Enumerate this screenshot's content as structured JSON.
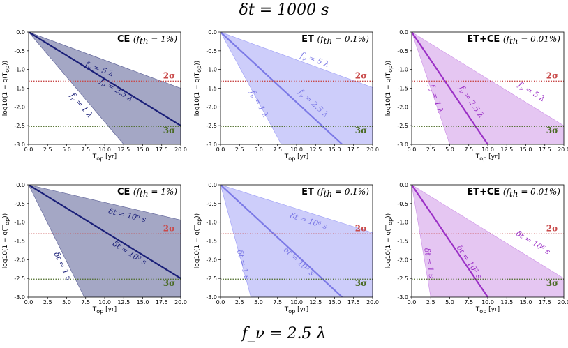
{
  "figure": {
    "title_top": "δt = 1000 s",
    "title_bottom": "f_ν = 2.5 λ",
    "colors": {
      "CE": {
        "fill": "#5a5e95",
        "line": "#1a1f78",
        "label": "#1a1f78"
      },
      "ET": {
        "fill": "#9b9cf6",
        "line": "#7b79e6",
        "label": "#7b79e6"
      },
      "ETCE": {
        "fill": "#cc8ee6",
        "line": "#9b30c6",
        "label": "#9b30c6"
      },
      "sigma2": "#c94a4a",
      "sigma3": "#4a6a24"
    }
  },
  "chart_data": [
    {
      "id": "p11",
      "type": "area",
      "title_bold": "CE",
      "title_math": "(f_th = 1%)",
      "xlabel": "T_op [yr]",
      "ylabel": "log10(1 − q(T_op))",
      "xlim": [
        0,
        20
      ],
      "ylim": [
        -3,
        0
      ],
      "xticks": [
        "0.0",
        "2.5",
        "5.0",
        "7.5",
        "10.0",
        "12.5",
        "15.0",
        "17.5",
        "20.0"
      ],
      "yticks": [
        "0.0",
        "-0.5",
        "-1.0",
        "-1.5",
        "-2.0",
        "-2.5",
        "-3.0"
      ],
      "slopes": {
        "upper": -0.075,
        "center": -0.125,
        "lower": -0.24
      },
      "hlines": [
        {
          "label": "2σ",
          "y": -1.31,
          "kind": "sigma2"
        },
        {
          "label": "3σ",
          "y": -2.52,
          "kind": "sigma3"
        }
      ],
      "labels": [
        {
          "text": "f_ν = 5 λ",
          "x": 9.2,
          "y": -1.05
        },
        {
          "text": "f_ν = 2.5 λ",
          "x": 11.4,
          "y": -1.6
        },
        {
          "text": "f_ν = 1 λ",
          "x": 6.7,
          "y": -2.0
        }
      ],
      "color": "CE"
    },
    {
      "id": "p12",
      "type": "area",
      "title_bold": "ET",
      "title_math": "(f_th = 0.1%)",
      "xlabel": "T_op [yr]",
      "ylabel": "log10(1 − q(T_op))",
      "xlim": [
        0,
        20
      ],
      "ylim": [
        -3,
        0
      ],
      "xticks": [
        "0.0",
        "2.5",
        "5.0",
        "7.5",
        "10.0",
        "12.5",
        "15.0",
        "17.5",
        "20.0"
      ],
      "yticks": [
        "0.0",
        "-0.5",
        "-1.0",
        "-1.5",
        "-2.0",
        "-2.5",
        "-3.0"
      ],
      "slopes": {
        "upper": -0.074,
        "center": -0.1875,
        "lower": -0.375
      },
      "hlines": [
        {
          "label": "2σ",
          "y": -1.31,
          "kind": "sigma2"
        },
        {
          "label": "3σ",
          "y": -2.52,
          "kind": "sigma3"
        }
      ],
      "labels": [
        {
          "text": "f_ν = 5 λ",
          "x": 12.3,
          "y": -0.8
        },
        {
          "text": "f_ν = 2.5 λ",
          "x": 12.0,
          "y": -1.95
        },
        {
          "text": "f_ν = 1 λ",
          "x": 4.8,
          "y": -1.95
        }
      ],
      "color": "ET"
    },
    {
      "id": "p13",
      "type": "area",
      "title_bold": "ET+CE",
      "title_math": "(f_th = 0.01%)",
      "xlabel": "T_op [yr]",
      "ylabel": "log10(1 − q(T_op))",
      "xlim": [
        0,
        20
      ],
      "ylim": [
        -3,
        0
      ],
      "xticks": [
        "0.0",
        "2.5",
        "5.0",
        "7.5",
        "10.0",
        "12.5",
        "15.0",
        "17.5",
        "20.0"
      ],
      "yticks": [
        "0.0",
        "-0.5",
        "-1.0",
        "-1.5",
        "-2.0",
        "-2.5",
        "-3.0"
      ],
      "slopes": {
        "upper": -0.125,
        "center": -0.3,
        "lower": -0.6
      },
      "hlines": [
        {
          "label": "2σ",
          "y": -1.31,
          "kind": "sigma2"
        },
        {
          "label": "3σ",
          "y": -2.52,
          "kind": "sigma3"
        }
      ],
      "labels": [
        {
          "text": "f_ν = 5 λ",
          "x": 15.6,
          "y": -1.65
        },
        {
          "text": "f_ν = 2.5 λ",
          "x": 7.6,
          "y": -1.9
        },
        {
          "text": "f_ν = 1 λ",
          "x": 2.9,
          "y": -1.8
        }
      ],
      "color": "ETCE"
    },
    {
      "id": "p21",
      "type": "area",
      "title_bold": "CE",
      "title_math": "(f_th = 1%)",
      "xlabel": "T_op [yr]",
      "ylabel": "log10(1 − q(T_op))",
      "xlim": [
        0,
        20
      ],
      "ylim": [
        -3,
        0
      ],
      "xticks": [
        "0.0",
        "2.5",
        "5.0",
        "7.5",
        "10.0",
        "12.5",
        "15.0",
        "17.5",
        "20.0"
      ],
      "yticks": [
        "0.0",
        "-0.5",
        "-1.0",
        "-1.5",
        "-2.0",
        "-2.5",
        "-3.0"
      ],
      "slopes": {
        "upper": -0.047,
        "center": -0.125,
        "lower": -0.41
      },
      "hlines": [
        {
          "label": "2σ",
          "y": -1.31,
          "kind": "sigma2"
        },
        {
          "label": "3σ",
          "y": -2.52,
          "kind": "sigma3"
        }
      ],
      "labels": [
        {
          "text": "δt = 10⁶ s",
          "x": 12.9,
          "y": -0.88
        },
        {
          "text": "δt = 10³ s",
          "x": 13.1,
          "y": -1.88
        },
        {
          "text": "δt = 1 s",
          "x": 4.2,
          "y": -2.2
        }
      ],
      "color": "CE"
    },
    {
      "id": "p22",
      "type": "area",
      "title_bold": "ET",
      "title_math": "(f_th = 0.1%)",
      "xlabel": "T_op [yr]",
      "ylabel": "log10(1 − q(T_op))",
      "xlim": [
        0,
        20
      ],
      "ylim": [
        -3,
        0
      ],
      "xticks": [
        "0.0",
        "2.5",
        "5.0",
        "7.5",
        "10.0",
        "12.5",
        "15.0",
        "17.5",
        "20.0"
      ],
      "yticks": [
        "0.0",
        "-0.5",
        "-1.0",
        "-1.5",
        "-2.0",
        "-2.5",
        "-3.0"
      ],
      "slopes": {
        "upper": -0.064,
        "center": -0.1875,
        "lower": -0.75
      },
      "hlines": [
        {
          "label": "2σ",
          "y": -1.31,
          "kind": "sigma2"
        },
        {
          "label": "3σ",
          "y": -2.52,
          "kind": "sigma3"
        }
      ],
      "labels": [
        {
          "text": "δt = 10⁶ s",
          "x": 11.5,
          "y": -1.03
        },
        {
          "text": "δt = 10³ s",
          "x": 10.1,
          "y": -2.1
        },
        {
          "text": "δt = 1 s",
          "x": 2.7,
          "y": -2.15
        }
      ],
      "color": "ET"
    },
    {
      "id": "p23",
      "type": "area",
      "title_bold": "ET+CE",
      "title_math": "(f_th = 0.01%)",
      "xlabel": "T_op [yr]",
      "ylabel": "log10(1 − q(T_op))",
      "xlim": [
        0,
        20
      ],
      "ylim": [
        -3,
        0
      ],
      "xticks": [
        "0.0",
        "2.5",
        "5.0",
        "7.5",
        "10.0",
        "12.5",
        "15.0",
        "17.5",
        "20.0"
      ],
      "yticks": [
        "0.0",
        "-0.5",
        "-1.0",
        "-1.5",
        "-2.0",
        "-2.5",
        "-3.0"
      ],
      "slopes": {
        "upper": -0.125,
        "center": -0.3,
        "lower": -1.2
      },
      "hlines": [
        {
          "label": "2σ",
          "y": -1.31,
          "kind": "sigma2"
        },
        {
          "label": "3σ",
          "y": -2.52,
          "kind": "sigma3"
        }
      ],
      "labels": [
        {
          "text": "δt = 10⁶ s",
          "x": 15.8,
          "y": -1.6
        },
        {
          "text": "δt = 10³ s",
          "x": 7.3,
          "y": -2.1
        },
        {
          "text": "δt = 1 s",
          "x": 2.0,
          "y": -2.1
        }
      ],
      "color": "ETCE"
    }
  ]
}
